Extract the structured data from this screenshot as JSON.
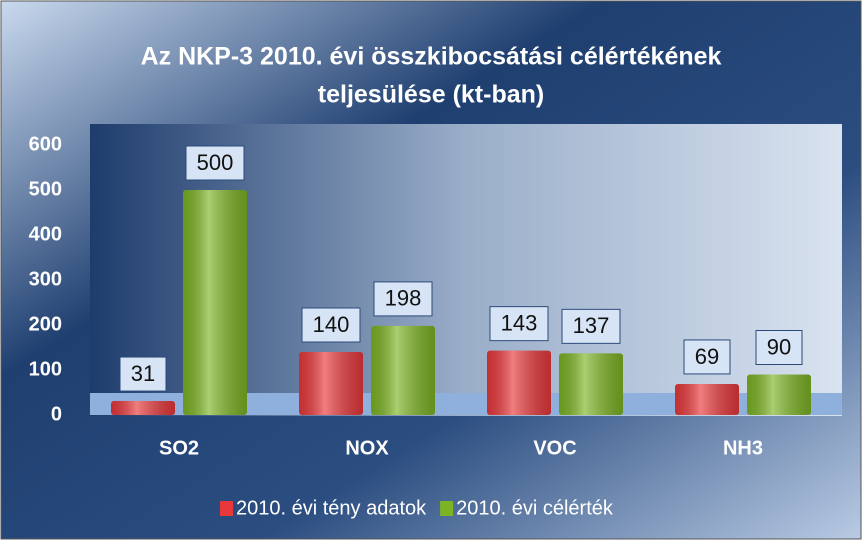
{
  "chart_data": {
    "type": "bar",
    "title": [
      "Az NKP-3 2010. évi összkibocsátási célértékének",
      "teljesülése (kt-ban)"
    ],
    "categories": [
      "SO2",
      "NOX",
      "VOC",
      "NH3"
    ],
    "series": [
      {
        "name": "2010. évi tény adatok",
        "color": "#e8383b",
        "values": [
          31,
          140,
          143,
          69
        ]
      },
      {
        "name": "2010. évi célérték",
        "color": "#7db424",
        "values": [
          500,
          198,
          137,
          90
        ]
      }
    ],
    "ylim": [
      0,
      600
    ],
    "yticks": [
      0,
      100,
      200,
      300,
      400,
      500,
      600
    ],
    "legend": "bottom"
  }
}
